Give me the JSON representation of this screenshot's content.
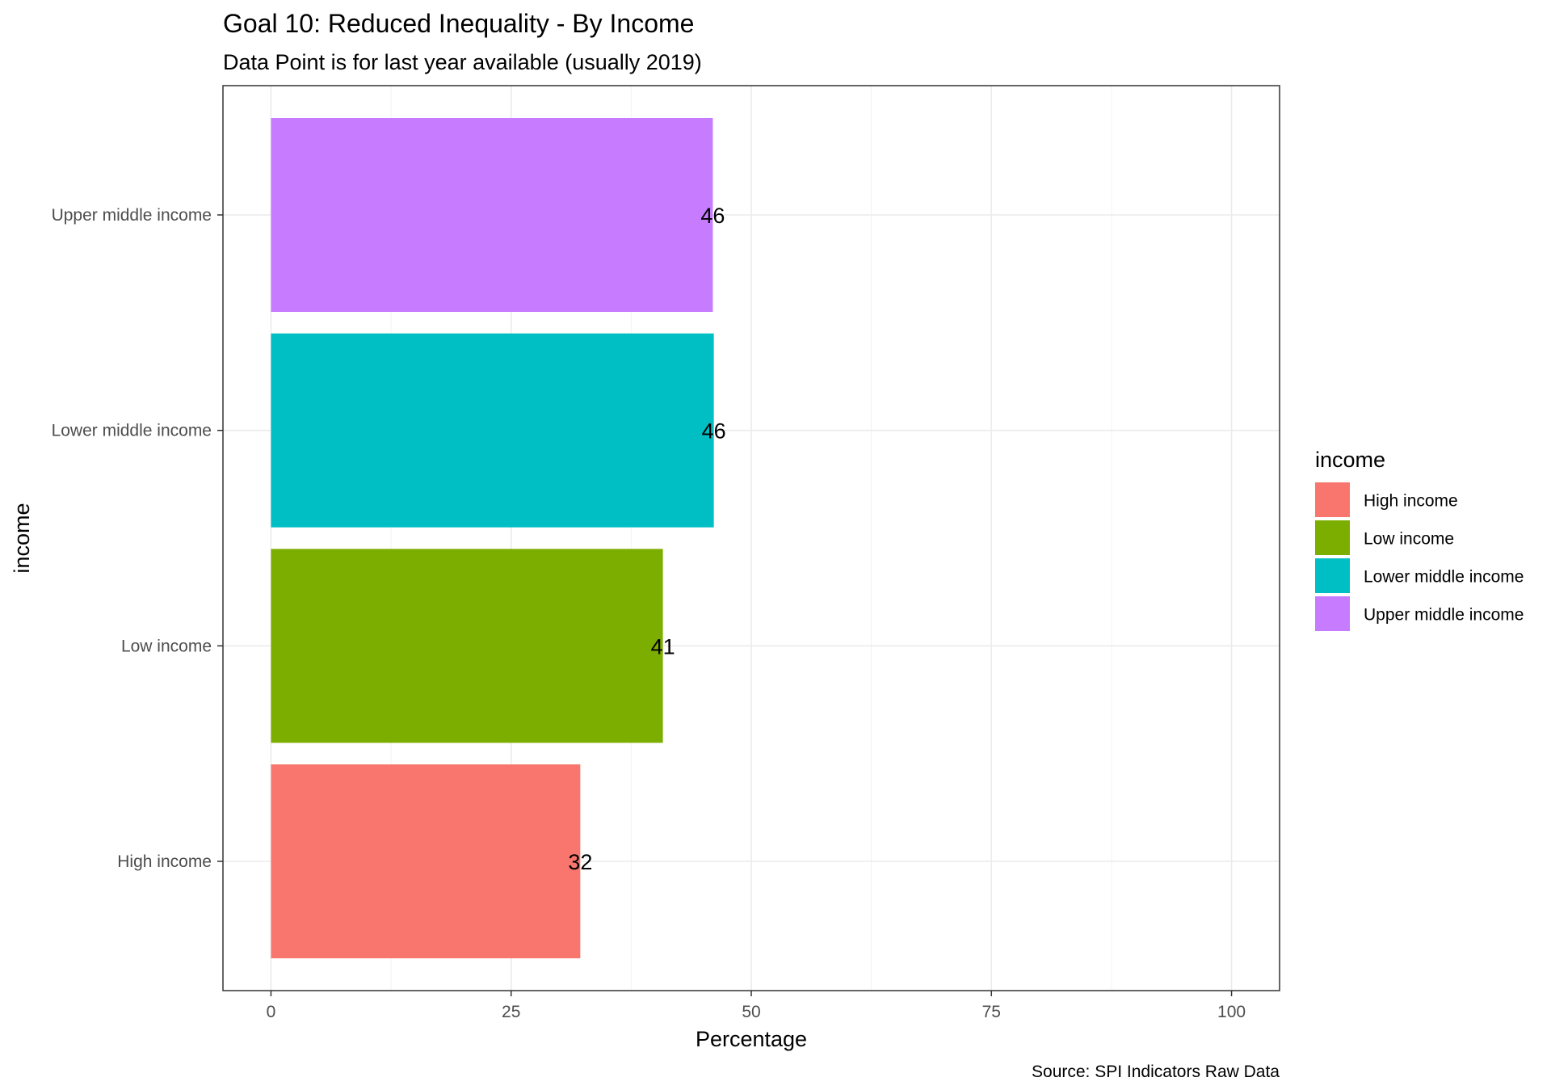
{
  "chart_data": {
    "type": "bar",
    "orientation": "horizontal",
    "title": "Goal 10: Reduced Inequality - By Income",
    "subtitle": "Data Point is for last year available (usually 2019)",
    "xlabel": "Percentage",
    "ylabel": "income",
    "caption": "Source: SPI Indicators Raw Data",
    "categories": [
      "High income",
      "Low income",
      "Lower middle income",
      "Upper middle income"
    ],
    "values": [
      32.2,
      40.8,
      46.1,
      46.0
    ],
    "data_labels": [
      "32",
      "41",
      "46",
      "46"
    ],
    "colors": [
      "#F8766D",
      "#7CAE00",
      "#00BFC4",
      "#C77CFF"
    ],
    "xlim": [
      -5,
      105
    ],
    "xticks": [
      0,
      25,
      50,
      75,
      100
    ],
    "xtick_labels": [
      "0",
      "25",
      "50",
      "75",
      "100"
    ],
    "grid": true,
    "legend": {
      "title": "income",
      "position": "right",
      "entries": [
        "High income",
        "Low income",
        "Lower middle income",
        "Upper middle income"
      ]
    }
  }
}
